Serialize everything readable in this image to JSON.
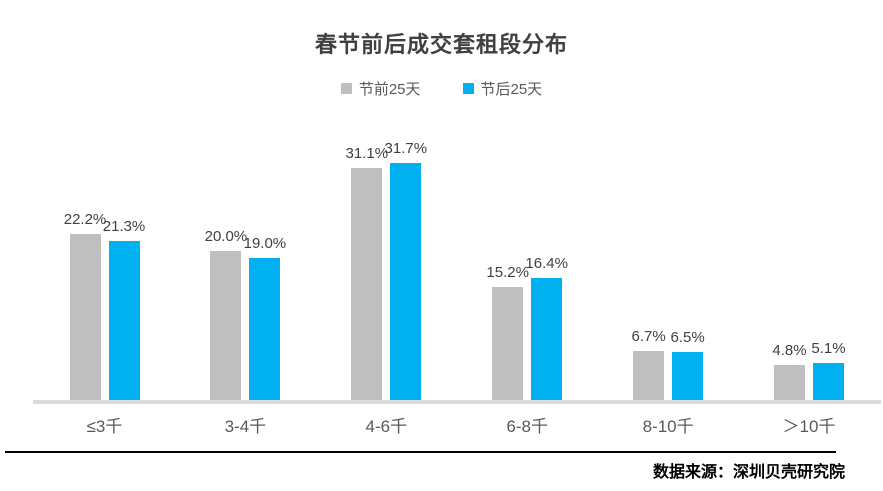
{
  "source_note": "数据来源：深圳贝壳研究院",
  "chart_data": {
    "type": "bar",
    "title": "春节前后成交套租段分布",
    "categories": [
      "≤3千",
      "3-4千",
      "4-6千",
      "6-8千",
      "8-10千",
      "＞10千"
    ],
    "series": [
      {
        "name": "节前25天",
        "color": "#bfbfbf",
        "values": [
          22.2,
          20.0,
          31.1,
          15.2,
          6.7,
          4.8
        ]
      },
      {
        "name": "节后25天",
        "color": "#00b0f0",
        "values": [
          21.3,
          19.0,
          31.7,
          16.4,
          6.5,
          5.1
        ]
      }
    ],
    "value_suffix": "%",
    "value_decimals": 1,
    "data_labels": true,
    "ylim": [
      0,
      35
    ],
    "grid": false,
    "legend_position": "top-center",
    "axis_line_color": "#d9d9d9",
    "label_color": "#404040",
    "category_label_color": "#595959"
  }
}
